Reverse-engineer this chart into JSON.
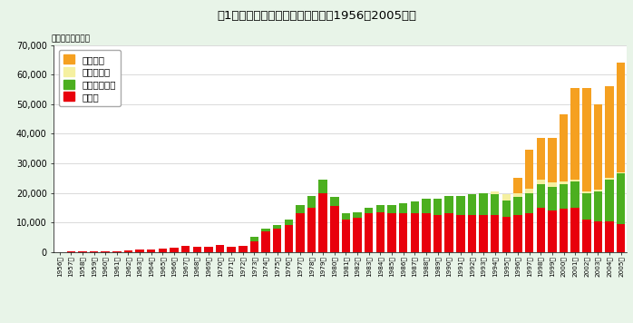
{
  "title": "図1　カゴメの野菜飲料売上推移（1956－2005年）",
  "unit_label": "（単位　百万円）",
  "years": [
    "1956年",
    "1957年",
    "1958年",
    "1959年",
    "1960年",
    "1961年",
    "1962年",
    "1963年",
    "1964年",
    "1965年",
    "1966年",
    "1967年",
    "1968年",
    "1969年",
    "1970年",
    "1971年",
    "1972年",
    "1973年",
    "1974年",
    "1975年",
    "1976年",
    "1977年",
    "1978年",
    "1979年",
    "1980年",
    "1981年",
    "1982年",
    "1983年",
    "1984年",
    "1985年",
    "1986年",
    "1987年",
    "1988年",
    "1989年",
    "1990年",
    "1991年",
    "1992年",
    "1993年",
    "1994年",
    "1995年",
    "1996年",
    "1997年",
    "1998年",
    "1999年",
    "2000年",
    "2001年",
    "2002年",
    "2003年",
    "2004年",
    "2005年"
  ],
  "tomato": [
    50,
    60,
    70,
    200,
    300,
    350,
    500,
    800,
    900,
    1200,
    1500,
    2000,
    1800,
    1600,
    2500,
    1800,
    2000,
    3500,
    7000,
    8000,
    9000,
    13000,
    15000,
    20000,
    15500,
    11000,
    11500,
    13000,
    13500,
    13000,
    13000,
    13000,
    13000,
    12500,
    13000,
    12500,
    12500,
    12500,
    12500,
    12000,
    12500,
    13000,
    15000,
    14000,
    14500,
    15000,
    11000,
    10500,
    10500,
    9500
  ],
  "yasai_mix": [
    0,
    0,
    0,
    0,
    0,
    0,
    0,
    0,
    0,
    0,
    0,
    0,
    0,
    0,
    0,
    0,
    0,
    1500,
    1000,
    1000,
    2000,
    3000,
    4000,
    4500,
    3000,
    2000,
    2000,
    2000,
    2500,
    3000,
    3500,
    4000,
    5000,
    5500,
    6000,
    6500,
    7000,
    7500,
    7000,
    5500,
    6000,
    7000,
    8000,
    8000,
    8500,
    9000,
    9000,
    10000,
    14000,
    17000
  ],
  "carrot": [
    0,
    0,
    0,
    0,
    0,
    0,
    0,
    0,
    0,
    0,
    0,
    0,
    0,
    0,
    0,
    0,
    0,
    0,
    0,
    0,
    0,
    0,
    0,
    0,
    0,
    0,
    0,
    0,
    0,
    0,
    0,
    0,
    0,
    0,
    0,
    0,
    0,
    0,
    1000,
    2000,
    1500,
    1500,
    1500,
    1500,
    1000,
    500,
    500,
    500,
    500,
    500
  ],
  "yasai_fruit": [
    0,
    0,
    0,
    0,
    0,
    0,
    0,
    0,
    0,
    0,
    0,
    0,
    0,
    0,
    0,
    0,
    0,
    0,
    0,
    0,
    0,
    0,
    0,
    0,
    0,
    0,
    0,
    0,
    0,
    0,
    0,
    0,
    0,
    0,
    0,
    0,
    0,
    0,
    0,
    0,
    5000,
    13000,
    14000,
    15000,
    22500,
    31000,
    35000,
    29000,
    31000,
    37000
  ],
  "color_tomato": "#e8000c",
  "color_yasai_mix": "#4caf1f",
  "color_carrot": "#f5f0a0",
  "color_yasai_fruit": "#f5a020",
  "bg_color": "#e8f4e8",
  "plot_bg": "#ffffff",
  "title_bg": "#b8d8c0",
  "ylim": [
    0,
    70000
  ],
  "yticks": [
    0,
    10000,
    20000,
    30000,
    40000,
    50000,
    60000,
    70000
  ],
  "ytick_labels": [
    "0",
    "10,000",
    "20,000",
    "30,000",
    "40,000",
    "50,000",
    "60,000",
    "70,000"
  ]
}
